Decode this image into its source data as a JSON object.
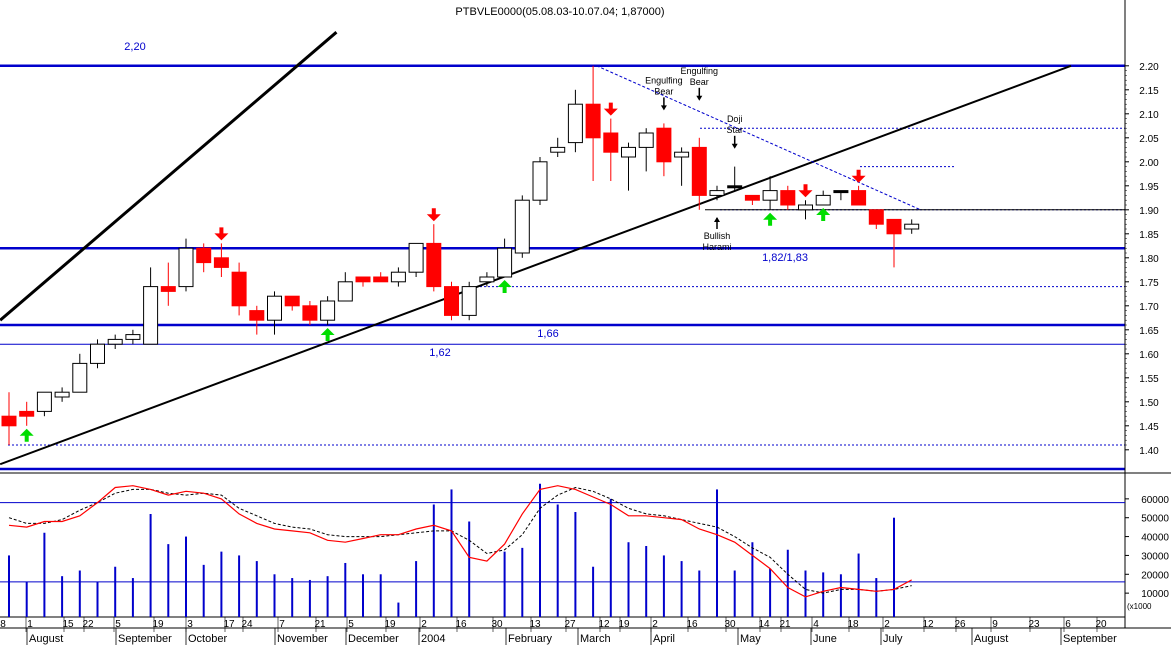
{
  "title": "PTBVLE0000(05.08.03-10.07.04; 1,87000)",
  "colors": {
    "up_body": "#ffffff",
    "down_body": "#ff0000",
    "doji": "#000000",
    "support_line": "#0000cc",
    "trend_line": "#000000",
    "arrow_down": "#ff0000",
    "arrow_up": "#00dd00",
    "volume_bar": "#0000cc",
    "stoch_k": "#ff0000",
    "stoch_d": "#000000"
  },
  "chart_data": [
    {
      "type": "candlestick",
      "panel": "price",
      "y_range": [
        1.36,
        2.26
      ],
      "y_ticks": [
        "1.40",
        "1.45",
        "1.50",
        "1.55",
        "1.60",
        "1.65",
        "1.70",
        "1.75",
        "1.80",
        "1.85",
        "1.90",
        "1.95",
        "2.00",
        "2.05",
        "2.10",
        "2.15",
        "2.20"
      ],
      "x_axis": {
        "day_labels": [
          "8",
          "1",
          "15",
          "22",
          "5",
          "19",
          "3",
          "17",
          "24",
          "7",
          "21",
          "5",
          "19",
          "2",
          "16",
          "30",
          "13",
          "27",
          "12",
          "19",
          "2",
          "16",
          "30",
          "14",
          "21",
          "4",
          "18",
          "2",
          "12",
          "26",
          "9",
          "23",
          "6",
          "20"
        ],
        "month_labels": [
          "August",
          "September",
          "October",
          "November",
          "December",
          "2004",
          "February",
          "March",
          "April",
          "May",
          "June",
          "July",
          "August",
          "September"
        ]
      },
      "candles": [
        {
          "o": 1.47,
          "h": 1.52,
          "l": 1.41,
          "c": 1.45
        },
        {
          "o": 1.48,
          "h": 1.5,
          "l": 1.45,
          "c": 1.47
        },
        {
          "o": 1.48,
          "h": 1.52,
          "l": 1.47,
          "c": 1.52
        },
        {
          "o": 1.51,
          "h": 1.53,
          "l": 1.5,
          "c": 1.52
        },
        {
          "o": 1.52,
          "h": 1.6,
          "l": 1.52,
          "c": 1.58
        },
        {
          "o": 1.58,
          "h": 1.63,
          "l": 1.57,
          "c": 1.62
        },
        {
          "o": 1.62,
          "h": 1.64,
          "l": 1.61,
          "c": 1.63
        },
        {
          "o": 1.63,
          "h": 1.65,
          "l": 1.62,
          "c": 1.64
        },
        {
          "o": 1.62,
          "h": 1.78,
          "l": 1.62,
          "c": 1.74
        },
        {
          "o": 1.74,
          "h": 1.79,
          "l": 1.7,
          "c": 1.73
        },
        {
          "o": 1.74,
          "h": 1.84,
          "l": 1.73,
          "c": 1.82
        },
        {
          "o": 1.82,
          "h": 1.83,
          "l": 1.77,
          "c": 1.79
        },
        {
          "o": 1.8,
          "h": 1.83,
          "l": 1.76,
          "c": 1.78
        },
        {
          "o": 1.77,
          "h": 1.79,
          "l": 1.68,
          "c": 1.7
        },
        {
          "o": 1.69,
          "h": 1.7,
          "l": 1.64,
          "c": 1.67
        },
        {
          "o": 1.67,
          "h": 1.73,
          "l": 1.64,
          "c": 1.72
        },
        {
          "o": 1.72,
          "h": 1.72,
          "l": 1.69,
          "c": 1.7
        },
        {
          "o": 1.7,
          "h": 1.71,
          "l": 1.66,
          "c": 1.67
        },
        {
          "o": 1.67,
          "h": 1.72,
          "l": 1.66,
          "c": 1.71
        },
        {
          "o": 1.71,
          "h": 1.77,
          "l": 1.71,
          "c": 1.75
        },
        {
          "o": 1.76,
          "h": 1.76,
          "l": 1.74,
          "c": 1.75
        },
        {
          "o": 1.76,
          "h": 1.77,
          "l": 1.75,
          "c": 1.75
        },
        {
          "o": 1.75,
          "h": 1.78,
          "l": 1.74,
          "c": 1.77
        },
        {
          "o": 1.77,
          "h": 1.83,
          "l": 1.76,
          "c": 1.83
        },
        {
          "o": 1.83,
          "h": 1.87,
          "l": 1.73,
          "c": 1.74
        },
        {
          "o": 1.74,
          "h": 1.75,
          "l": 1.67,
          "c": 1.68
        },
        {
          "o": 1.68,
          "h": 1.75,
          "l": 1.67,
          "c": 1.74
        },
        {
          "o": 1.75,
          "h": 1.77,
          "l": 1.74,
          "c": 1.76
        },
        {
          "o": 1.76,
          "h": 1.84,
          "l": 1.76,
          "c": 1.82
        },
        {
          "o": 1.81,
          "h": 1.93,
          "l": 1.8,
          "c": 1.92
        },
        {
          "o": 1.92,
          "h": 2.01,
          "l": 1.91,
          "c": 2.0
        },
        {
          "o": 2.02,
          "h": 2.05,
          "l": 2.01,
          "c": 2.03
        },
        {
          "o": 2.04,
          "h": 2.15,
          "l": 2.02,
          "c": 2.12
        },
        {
          "o": 2.12,
          "h": 2.2,
          "l": 1.96,
          "c": 2.05
        },
        {
          "o": 2.06,
          "h": 2.09,
          "l": 1.96,
          "c": 2.02
        },
        {
          "o": 2.01,
          "h": 2.04,
          "l": 1.94,
          "c": 2.03
        },
        {
          "o": 2.03,
          "h": 2.07,
          "l": 1.98,
          "c": 2.06
        },
        {
          "o": 2.07,
          "h": 2.08,
          "l": 1.97,
          "c": 2.0
        },
        {
          "o": 2.01,
          "h": 2.03,
          "l": 1.95,
          "c": 2.02
        },
        {
          "o": 2.03,
          "h": 2.05,
          "l": 1.9,
          "c": 1.93
        },
        {
          "o": 1.93,
          "h": 1.95,
          "l": 1.92,
          "c": 1.94
        },
        {
          "o": 1.95,
          "h": 1.99,
          "l": 1.94,
          "c": 1.95
        },
        {
          "o": 1.93,
          "h": 1.93,
          "l": 1.91,
          "c": 1.92
        },
        {
          "o": 1.92,
          "h": 1.97,
          "l": 1.9,
          "c": 1.94
        },
        {
          "o": 1.94,
          "h": 1.95,
          "l": 1.9,
          "c": 1.91
        },
        {
          "o": 1.9,
          "h": 1.92,
          "l": 1.88,
          "c": 1.91
        },
        {
          "o": 1.91,
          "h": 1.94,
          "l": 1.91,
          "c": 1.93
        },
        {
          "o": 1.94,
          "h": 1.94,
          "l": 1.92,
          "c": 1.94
        },
        {
          "o": 1.94,
          "h": 1.95,
          "l": 1.91,
          "c": 1.91
        },
        {
          "o": 1.9,
          "h": 1.9,
          "l": 1.86,
          "c": 1.87
        },
        {
          "o": 1.88,
          "h": 1.88,
          "l": 1.78,
          "c": 1.85
        },
        {
          "o": 1.86,
          "h": 1.88,
          "l": 1.85,
          "c": 1.87
        }
      ],
      "horizontal_lines": [
        {
          "value": 2.2,
          "label": "2,20",
          "weight": "thick"
        },
        {
          "value": 1.82,
          "label": "1,82/1,83",
          "weight": "thick"
        },
        {
          "value": 1.66,
          "label": "1,66",
          "weight": "thick"
        },
        {
          "value": 1.62,
          "label": "1,62",
          "weight": "thin"
        },
        {
          "value": 1.36,
          "label": "",
          "weight": "thick"
        }
      ],
      "dotted_lines": [
        1.41,
        1.74,
        1.9,
        1.99,
        2.07
      ],
      "trend_lines": [
        {
          "from": [
            -0.5,
            1.67
          ],
          "to": [
            18.5,
            2.27
          ],
          "weight": "thick"
        },
        {
          "from": [
            -0.5,
            1.37
          ],
          "to": [
            60,
            2.2
          ],
          "weight": "normal"
        },
        {
          "from": [
            33.2,
            2.2
          ],
          "to": [
            51.5,
            1.9
          ],
          "weight": "dotted"
        }
      ],
      "arrows_down": [
        12,
        24,
        34,
        45,
        48
      ],
      "arrows_up": [
        1,
        18,
        28,
        43,
        46
      ],
      "annotations": [
        {
          "text": "Engulfing Bear",
          "index": 37,
          "value": 2.13,
          "arrow": "down"
        },
        {
          "text": "Engulfing Bear",
          "index": 39,
          "value": 2.15,
          "arrow": "down"
        },
        {
          "text": "Doji Star",
          "index": 41,
          "value": 2.05,
          "arrow": "down"
        },
        {
          "text": "Bullish Harami",
          "index": 40,
          "value": 1.86,
          "arrow": "up"
        }
      ]
    },
    {
      "type": "bar+line",
      "panel": "volume_stochastic",
      "y_range": [
        0,
        70000
      ],
      "y_ticks": [
        "10000",
        "20000",
        "30000",
        "40000",
        "50000",
        "60000"
      ],
      "y_unit_label": "(x1000",
      "reference_lines": [
        58000,
        16000
      ],
      "volume": [
        30000,
        16000,
        42000,
        19000,
        22000,
        16000,
        24000,
        18000,
        52000,
        36000,
        40000,
        25000,
        32000,
        30000,
        27000,
        20000,
        18000,
        17000,
        19000,
        26000,
        20000,
        20000,
        5000,
        27000,
        57000,
        65000,
        48000,
        0,
        32000,
        34000,
        68000,
        57000,
        53000,
        24000,
        60000,
        37000,
        35000,
        30000,
        27000,
        22000,
        65000,
        22000,
        37000,
        23000,
        33000,
        22000,
        21000,
        20000,
        31000,
        18000,
        50000,
        0
      ],
      "stoch_k": [
        46000,
        45000,
        48000,
        48000,
        51000,
        58000,
        66000,
        67000,
        65000,
        62000,
        64000,
        63000,
        60000,
        52000,
        47000,
        44000,
        43000,
        42000,
        38000,
        37000,
        39000,
        41000,
        41000,
        44000,
        46000,
        43000,
        29000,
        27000,
        36000,
        52000,
        65000,
        67000,
        65000,
        61000,
        57000,
        51000,
        51000,
        50000,
        49000,
        44000,
        41000,
        37000,
        30000,
        23000,
        13000,
        8000,
        11000,
        13000,
        12000,
        11000,
        12000,
        17000
      ],
      "stoch_d": [
        50000,
        47000,
        47000,
        49000,
        54000,
        58000,
        63000,
        65000,
        65000,
        63000,
        62000,
        63000,
        62000,
        55000,
        51000,
        47000,
        45000,
        44000,
        41000,
        40000,
        40000,
        40000,
        41000,
        42000,
        43000,
        43000,
        38000,
        31000,
        33000,
        41000,
        55000,
        62000,
        66000,
        64000,
        60000,
        55000,
        52000,
        51000,
        49000,
        47000,
        45000,
        40000,
        34000,
        29000,
        20000,
        12000,
        10000,
        12000,
        12000,
        11000,
        12000,
        14000
      ]
    }
  ]
}
